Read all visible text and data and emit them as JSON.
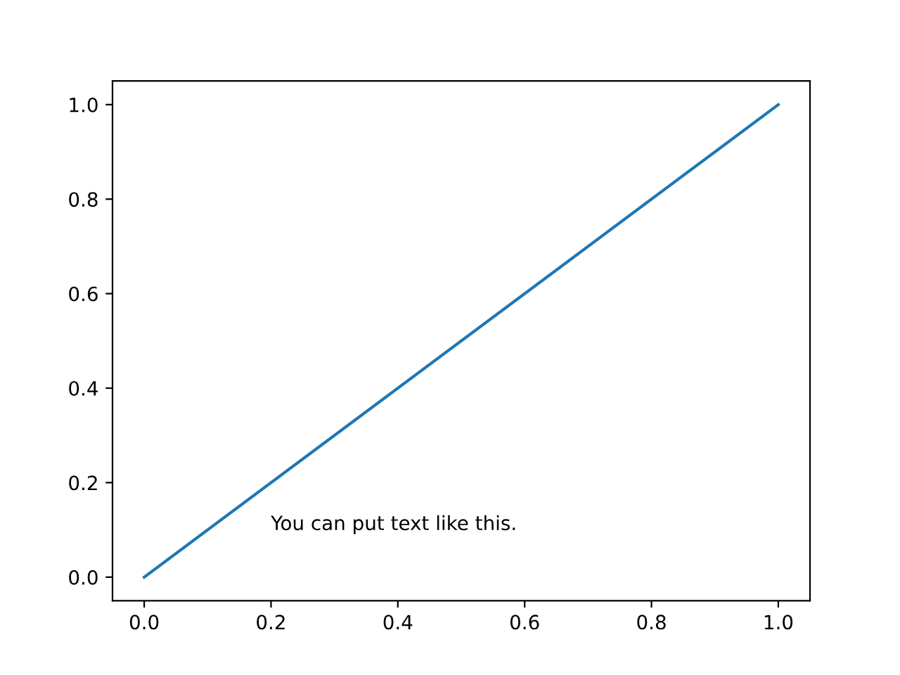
{
  "chart_data": {
    "type": "line",
    "x": [
      0,
      1
    ],
    "series": [
      {
        "color": "#1f77b4",
        "values": [
          0,
          1
        ]
      }
    ],
    "xlim": [
      -0.05,
      1.05
    ],
    "ylim": [
      -0.05,
      1.05
    ],
    "xticks": [
      {
        "value": 0,
        "label": "0.0"
      },
      0.2,
      0.4,
      0.6,
      0.8,
      {
        "value": 1,
        "label": "1.0"
      }
    ],
    "yticks": [
      {
        "value": 0,
        "label": "0.0"
      },
      0.2,
      0.4,
      0.6,
      0.8,
      {
        "value": 1,
        "label": "1.0"
      }
    ],
    "annotations": [
      "You can put text like this."
    ],
    "grid": false,
    "legend": false
  }
}
